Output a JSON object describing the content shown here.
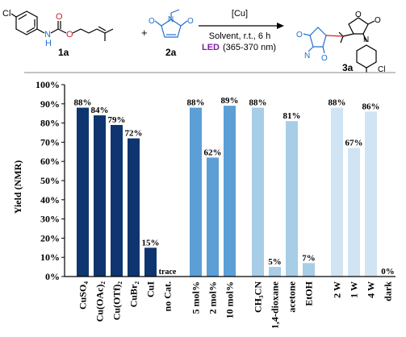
{
  "scheme": {
    "reactant1_label": "1a",
    "reactant1_atoms": {
      "cl": "Cl",
      "nh": "N",
      "h": "H",
      "o1": "O",
      "o2": "O"
    },
    "plus": "+",
    "reactant2_label": "2a",
    "reactant2_atoms": {
      "n": "N",
      "o1": "O",
      "o2": "O"
    },
    "catalyst": "[Cu]",
    "conditions": "Solvent, r.t., 6 h",
    "led_label": "LED",
    "led_range": "(365-370 nm)",
    "product_label": "3a",
    "product_atoms": {
      "o1": "O",
      "o2": "O",
      "n1": "N",
      "o3": "O",
      "o4": "O",
      "n2": "N",
      "cl": "Cl"
    },
    "colors": {
      "black": "#000000",
      "blue": "#1f6fcf",
      "red": "#d0212a",
      "purple": "#7b1fa2"
    }
  },
  "chart_data": {
    "type": "bar",
    "ylabel": "Yield (NMR)",
    "ylim": [
      0,
      100
    ],
    "yticks": [
      "0%",
      "10%",
      "20%",
      "30%",
      "40%",
      "50%",
      "60%",
      "70%",
      "80%",
      "90%",
      "100%"
    ],
    "groups": [
      {
        "color": "#0e3570",
        "categories": [
          "CuSO₄",
          "Cu(OAc)₂",
          "Cu(OTf)₂",
          "CuBr₂",
          "CuI",
          "no Cat."
        ],
        "values": [
          88,
          84,
          79,
          72,
          15,
          0
        ],
        "labels": [
          "88%",
          "84%",
          "79%",
          "72%",
          "15%",
          "trace"
        ]
      },
      {
        "color": "#5b9fd6",
        "categories": [
          "5 mol%",
          "2 mol%",
          "10 mol%"
        ],
        "values": [
          88,
          62,
          89
        ],
        "labels": [
          "88%",
          "62%",
          "89%"
        ]
      },
      {
        "color": "#a7cde7",
        "categories": [
          "CH₃CN",
          "1,4-dioxane",
          "acetone",
          "EtOH"
        ],
        "values": [
          88,
          5,
          81,
          7
        ],
        "labels": [
          "88%",
          "5%",
          "81%",
          "7%"
        ]
      },
      {
        "color": "#d0e4f4",
        "categories": [
          "2 W",
          "1 W",
          "4 W",
          "dark"
        ],
        "values": [
          88,
          67,
          86,
          0
        ],
        "labels": [
          "88%",
          "67%",
          "86%",
          "0%"
        ]
      }
    ]
  }
}
